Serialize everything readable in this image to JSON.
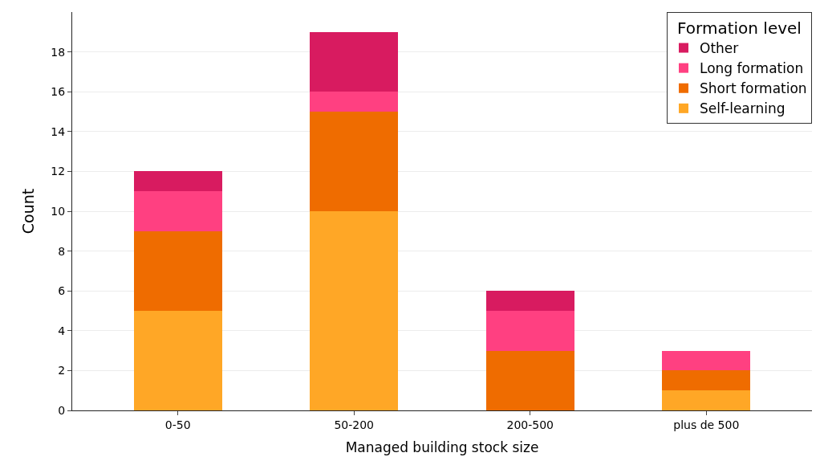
{
  "chart_data": {
    "type": "bar",
    "stacked": true,
    "xlabel": "Managed building stock size",
    "ylabel": "Count",
    "legend_title": "Formation level",
    "legend": "top right",
    "grid": "y",
    "categories": [
      "0-50",
      "50-200",
      "200-500",
      "plus de 500"
    ],
    "series": [
      {
        "name": "Self-learning",
        "color": "#ffa726",
        "values": [
          5,
          10,
          0,
          1
        ]
      },
      {
        "name": "Short formation",
        "color": "#ef6c00",
        "values": [
          4,
          5,
          3,
          1
        ]
      },
      {
        "name": "Long formation",
        "color": "#ff4081",
        "values": [
          2,
          1,
          2,
          1
        ]
      },
      {
        "name": "Other",
        "color": "#d81b60",
        "values": [
          1,
          3,
          1,
          0
        ]
      }
    ],
    "ylim": [
      0,
      20
    ],
    "yticks": [
      0,
      2,
      4,
      6,
      8,
      10,
      12,
      14,
      16,
      18
    ]
  }
}
